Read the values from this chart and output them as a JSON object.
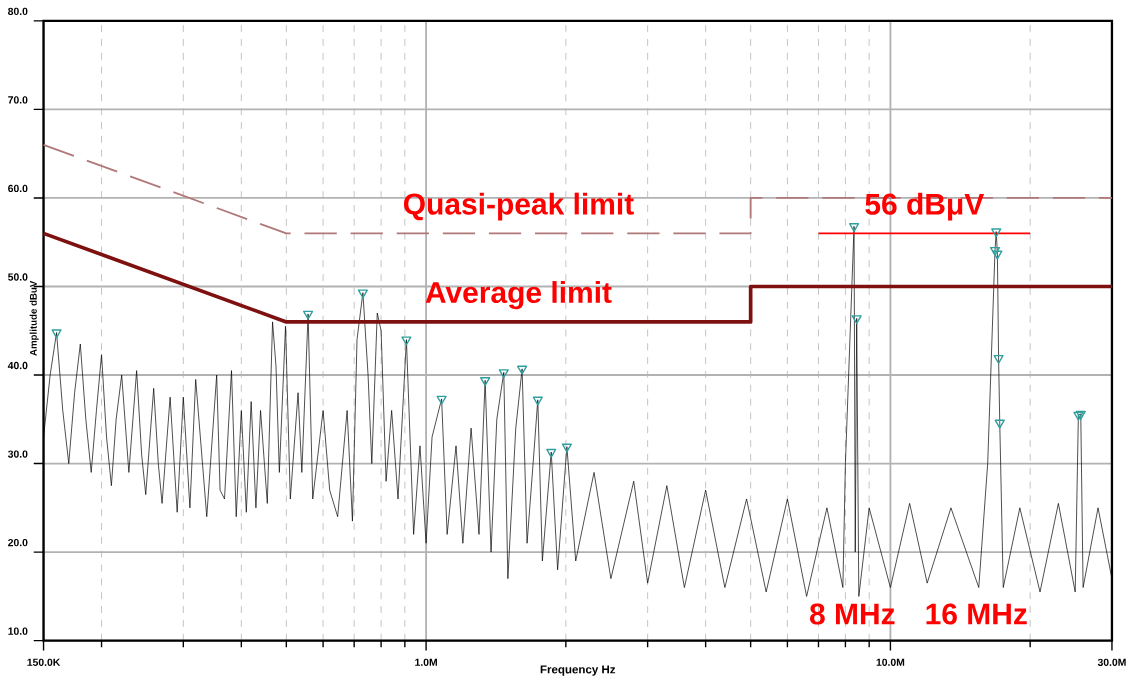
{
  "chart_data": {
    "type": "line",
    "xlabel": "Frequency Hz",
    "ylabel": "Amplitude dBuV",
    "log": "x",
    "grid": true,
    "xlim": [
      150000,
      30000000
    ],
    "ylim": [
      10,
      80
    ],
    "xticks": [
      {
        "value": 150000,
        "label": "150.0K"
      },
      {
        "value": 200000,
        "label": null
      },
      {
        "value": 300000,
        "label": null
      },
      {
        "value": 400000,
        "label": null
      },
      {
        "value": 500000,
        "label": null
      },
      {
        "value": 600000,
        "label": null
      },
      {
        "value": 700000,
        "label": null
      },
      {
        "value": 800000,
        "label": null
      },
      {
        "value": 900000,
        "label": null
      },
      {
        "value": 1000000,
        "label": "1.0M"
      },
      {
        "value": 2000000,
        "label": null
      },
      {
        "value": 3000000,
        "label": null
      },
      {
        "value": 4000000,
        "label": null
      },
      {
        "value": 5000000,
        "label": null
      },
      {
        "value": 6000000,
        "label": null
      },
      {
        "value": 7000000,
        "label": null
      },
      {
        "value": 8000000,
        "label": null
      },
      {
        "value": 9000000,
        "label": null
      },
      {
        "value": 10000000,
        "label": "10.0M"
      },
      {
        "value": 20000000,
        "label": null
      },
      {
        "value": 30000000,
        "label": "30.0M"
      }
    ],
    "yticks": [
      {
        "value": 10,
        "label": "10.0"
      },
      {
        "value": 20,
        "label": "20.0"
      },
      {
        "value": 30,
        "label": "30.0"
      },
      {
        "value": 40,
        "label": "40.0"
      },
      {
        "value": 50,
        "label": "50.0"
      },
      {
        "value": 60,
        "label": "60.0"
      },
      {
        "value": 70,
        "label": "70.0"
      },
      {
        "value": 80,
        "label": "80.0"
      }
    ],
    "series": [
      {
        "color": "#000000",
        "line_style": "solid",
        "x": [
          150000,
          155000,
          160000,
          165000,
          170000,
          175000,
          180000,
          185000,
          190000,
          195000,
          200000,
          205000,
          210000,
          215000,
          221000,
          229000,
          238000,
          244000,
          249000,
          259000,
          265000,
          270000,
          281000,
          291000,
          300000,
          310000,
          319000,
          337000,
          354000,
          360000,
          368000,
          381000,
          390000,
          400000,
          410000,
          420000,
          430000,
          440000,
          455000,
          467000,
          475000,
          483000,
          498000,
          510000,
          530000,
          540000,
          557000,
          570000,
          600000,
          620000,
          645000,
          676000,
          694000,
          710000,
          731000,
          750000,
          764000,
          785000,
          800000,
          820000,
          843000,
          870000,
          907000,
          940000,
          970000,
          1000000,
          1030000,
          1080000,
          1110000,
          1160000,
          1200000,
          1250000,
          1300000,
          1340000,
          1380000,
          1420000,
          1470000,
          1500000,
          1560000,
          1610000,
          1650000,
          1700000,
          1740000,
          1780000,
          1860000,
          1920000,
          2010000,
          2100000,
          2300000,
          2500000,
          2800000,
          3000000,
          3300000,
          3600000,
          4000000,
          4400000,
          4900000,
          5400000,
          6000000,
          6600000,
          7300000,
          7900000,
          8000000,
          8350000,
          8400000,
          8460000,
          8550000,
          9000000,
          10000000,
          11000000,
          12000000,
          13500000,
          15500000,
          16200000,
          16800000,
          16900000,
          17000000,
          17100000,
          17200000,
          17500000,
          19000000,
          21000000,
          23000000,
          25000000,
          25400000,
          25700000,
          26000000,
          28000000,
          30000000
        ],
        "values": [
          33,
          40,
          44.8,
          36,
          30,
          38,
          43.5,
          35,
          29,
          36,
          42.3,
          33,
          27.5,
          35,
          40,
          29,
          40.5,
          31,
          26.5,
          38.5,
          30,
          25.5,
          37.5,
          24.5,
          37.5,
          25,
          39.5,
          24,
          40,
          27,
          26,
          40.5,
          24,
          36,
          24.5,
          37,
          25,
          36,
          25.5,
          46,
          41,
          29,
          45.5,
          26,
          38,
          29,
          46.9,
          26,
          36,
          27,
          24,
          36,
          23.5,
          44,
          49.3,
          40,
          30,
          47,
          45,
          28,
          36,
          26,
          44,
          22,
          32,
          21,
          33,
          37.3,
          22,
          32,
          21,
          34,
          22,
          39.4,
          20,
          35,
          40.3,
          17,
          34,
          40.7,
          21,
          30,
          37.2,
          19,
          31.3,
          18,
          31.9,
          19,
          29,
          17,
          28,
          16.5,
          27.5,
          16,
          27,
          16,
          26,
          15.5,
          26,
          15,
          25,
          16,
          30,
          56.8,
          20,
          46.4,
          15,
          25,
          16,
          25.5,
          16.5,
          25,
          16,
          30,
          54.1,
          56.2,
          53.7,
          41.9,
          34.6,
          16,
          25,
          15.5,
          25.5,
          15.5,
          35.5,
          35.6,
          16,
          25,
          17
        ]
      },
      {
        "type": "scatter",
        "color": "#2e9e9e",
        "marker": "triangle",
        "x": [
          160000,
          557000,
          731000,
          907000,
          1080000,
          1340000,
          1470000,
          1610000,
          1740000,
          1860000,
          2010000,
          8350000,
          8460000,
          16900000,
          16800000,
          17000000,
          17100000,
          17200000,
          25400000,
          25700000
        ],
        "values": [
          44.8,
          46.9,
          49.3,
          44.0,
          37.3,
          39.4,
          40.3,
          40.7,
          37.2,
          31.3,
          31.9,
          56.8,
          46.4,
          56.2,
          54.1,
          53.7,
          41.9,
          34.6,
          35.5,
          35.6
        ]
      },
      {
        "name": "Quasi-peak limit",
        "color": "#b07878",
        "line_style": "dashed",
        "x": [
          150000,
          500000,
          5000000,
          5000000,
          30000000
        ],
        "values": [
          66,
          56,
          56,
          60,
          60
        ]
      },
      {
        "name": "Average limit",
        "color": "#7f1010",
        "line_style": "solid",
        "x": [
          150000,
          500000,
          5000000,
          5000000,
          30000000
        ],
        "values": [
          56,
          46,
          46,
          50,
          50
        ]
      },
      {
        "name": "56 dBμV",
        "color": "#ff0000",
        "line_style": "solid",
        "x": [
          7000000,
          20000000
        ],
        "values": [
          56,
          56
        ]
      }
    ],
    "annotations": [
      "8 MHz",
      "16 MHz"
    ]
  }
}
